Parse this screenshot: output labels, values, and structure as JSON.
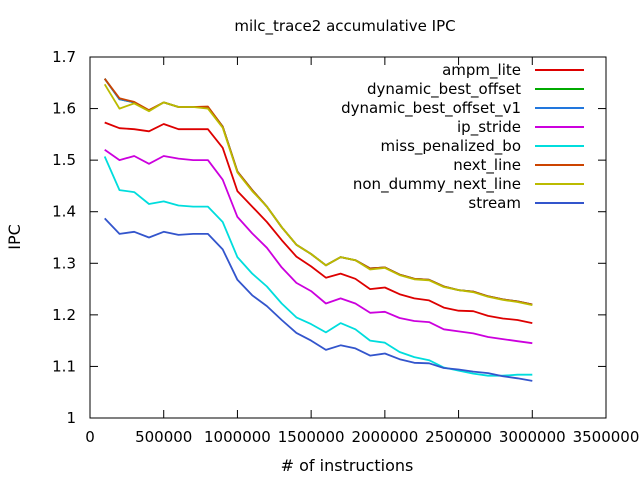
{
  "chart_data": {
    "type": "line",
    "title": "milc_trace2 accumulative IPC",
    "xlabel": "# of instructions",
    "ylabel": "IPC",
    "xlim": [
      0,
      3500000
    ],
    "ylim": [
      1,
      1.7
    ],
    "xticks": [
      0,
      500000,
      1000000,
      1500000,
      2000000,
      2500000,
      3000000,
      3500000
    ],
    "xtick_labels": [
      "0",
      "500000",
      "1000000",
      "1500000",
      "2000000",
      "2500000",
      "3000000",
      "3500000"
    ],
    "yticks": [
      1,
      1.1,
      1.2,
      1.3,
      1.4,
      1.5,
      1.6,
      1.7
    ],
    "ytick_labels": [
      "1",
      "1.1",
      "1.2",
      "1.3",
      "1.4",
      "1.5",
      "1.6",
      "1.7"
    ],
    "grid": false,
    "legend_position": "top-right",
    "x": [
      100000,
      200000,
      300000,
      400000,
      500000,
      600000,
      700000,
      800000,
      900000,
      1000000,
      1100000,
      1200000,
      1300000,
      1400000,
      1500000,
      1600000,
      1700000,
      1800000,
      1900000,
      2000000,
      2100000,
      2200000,
      2300000,
      2400000,
      2500000,
      2600000,
      2700000,
      2800000,
      2900000,
      3000000
    ],
    "series": [
      {
        "name": "ampm_lite",
        "color": "#dd0000",
        "values": [
          1.573,
          1.562,
          1.56,
          1.556,
          1.57,
          1.56,
          1.56,
          1.56,
          1.524,
          1.44,
          1.41,
          1.38,
          1.345,
          1.313,
          1.294,
          1.272,
          1.28,
          1.27,
          1.25,
          1.253,
          1.24,
          1.232,
          1.228,
          1.214,
          1.208,
          1.207,
          1.198,
          1.193,
          1.19,
          1.184
        ]
      },
      {
        "name": "dynamic_best_offset",
        "color": "#00aa00",
        "values": [
          1.658,
          1.618,
          1.612,
          1.596,
          1.612,
          1.603,
          1.603,
          1.603,
          1.565,
          1.478,
          1.442,
          1.41,
          1.37,
          1.336,
          1.318,
          1.296,
          1.312,
          1.306,
          1.29,
          1.292,
          1.278,
          1.27,
          1.268,
          1.255,
          1.248,
          1.245,
          1.236,
          1.23,
          1.226,
          1.22
        ]
      },
      {
        "name": "dynamic_best_offset_v1",
        "color": "#2277dd",
        "values": [
          1.658,
          1.618,
          1.612,
          1.596,
          1.612,
          1.603,
          1.603,
          1.603,
          1.565,
          1.478,
          1.442,
          1.41,
          1.37,
          1.336,
          1.318,
          1.296,
          1.312,
          1.306,
          1.29,
          1.292,
          1.278,
          1.27,
          1.268,
          1.255,
          1.248,
          1.245,
          1.236,
          1.23,
          1.226,
          1.22
        ]
      },
      {
        "name": "ip_stride",
        "color": "#cc00dd",
        "values": [
          1.52,
          1.5,
          1.508,
          1.493,
          1.508,
          1.503,
          1.5,
          1.5,
          1.462,
          1.39,
          1.358,
          1.33,
          1.292,
          1.262,
          1.246,
          1.222,
          1.232,
          1.222,
          1.204,
          1.206,
          1.194,
          1.188,
          1.186,
          1.172,
          1.168,
          1.164,
          1.157,
          1.153,
          1.149,
          1.145
        ]
      },
      {
        "name": "miss_penalized_bo",
        "color": "#00dddd",
        "values": [
          1.507,
          1.442,
          1.438,
          1.415,
          1.42,
          1.412,
          1.41,
          1.41,
          1.38,
          1.312,
          1.28,
          1.255,
          1.222,
          1.195,
          1.182,
          1.166,
          1.184,
          1.172,
          1.15,
          1.146,
          1.128,
          1.118,
          1.112,
          1.098,
          1.092,
          1.086,
          1.082,
          1.082,
          1.084,
          1.084
        ]
      },
      {
        "name": "next_line",
        "color": "#cc4400",
        "values": [
          1.658,
          1.62,
          1.613,
          1.597,
          1.612,
          1.603,
          1.603,
          1.604,
          1.565,
          1.478,
          1.442,
          1.41,
          1.37,
          1.336,
          1.318,
          1.296,
          1.312,
          1.306,
          1.29,
          1.292,
          1.278,
          1.27,
          1.268,
          1.255,
          1.248,
          1.245,
          1.236,
          1.23,
          1.226,
          1.22
        ]
      },
      {
        "name": "non_dummy_next_line",
        "color": "#bbbb00",
        "values": [
          1.647,
          1.6,
          1.61,
          1.595,
          1.612,
          1.603,
          1.603,
          1.6,
          1.563,
          1.476,
          1.44,
          1.41,
          1.37,
          1.336,
          1.318,
          1.296,
          1.312,
          1.306,
          1.288,
          1.291,
          1.277,
          1.269,
          1.267,
          1.254,
          1.248,
          1.244,
          1.235,
          1.229,
          1.225,
          1.219
        ]
      },
      {
        "name": "stream",
        "color": "#3355cc",
        "values": [
          1.387,
          1.357,
          1.361,
          1.35,
          1.361,
          1.355,
          1.357,
          1.357,
          1.327,
          1.268,
          1.238,
          1.217,
          1.19,
          1.165,
          1.15,
          1.132,
          1.141,
          1.135,
          1.121,
          1.125,
          1.114,
          1.107,
          1.106,
          1.097,
          1.094,
          1.09,
          1.087,
          1.081,
          1.077,
          1.072
        ]
      }
    ]
  }
}
